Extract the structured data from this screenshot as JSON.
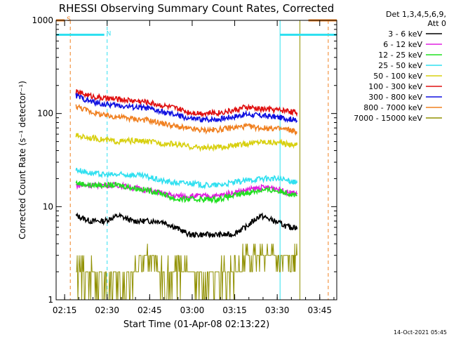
{
  "chart_data": {
    "type": "line",
    "title": "RHESSI Observing Summary Count Rates, Corrected",
    "xlabel": "Start Time (01-Apr-08 02:13:22)",
    "ylabel": "Corrected Count Rate (s⁻¹ detector⁻¹)",
    "yscale": "log",
    "ylim": [
      1,
      1000
    ],
    "xlim": [
      "02:12",
      "03:51"
    ],
    "x_ticks": [
      "02:15",
      "02:30",
      "02:45",
      "03:00",
      "03:15",
      "03:30",
      "03:45"
    ],
    "y_ticks": [
      "1",
      "10",
      "100",
      "1000"
    ],
    "legend_header": [
      "Det 1,3,4,5,6,9,",
      "Att 0"
    ],
    "legend_position": "right",
    "footer": "14-Oct-2021 05:45",
    "flags": [
      {
        "label": "S",
        "color": "#f08020",
        "value": 1000,
        "segments": [
          [
            "02:12",
            "02:15"
          ],
          [
            "03:41",
            "03:51"
          ]
        ]
      },
      {
        "label": "N",
        "color": "#30e0f0",
        "value": 700,
        "segments": [
          [
            "02:12",
            "02:29"
          ],
          [
            "03:31",
            "03:51"
          ]
        ]
      }
    ],
    "vlines": [
      {
        "x": "02:17",
        "color": "#f08020",
        "style": "dashed"
      },
      {
        "x": "02:30",
        "color": "#30e0f0",
        "style": "dashed"
      },
      {
        "x": "03:31",
        "color": "#30e0f0",
        "style": "solid"
      },
      {
        "x": "03:38",
        "color": "#909000",
        "style": "solid"
      },
      {
        "x": "03:48",
        "color": "#f08020",
        "style": "dashed"
      }
    ],
    "x": [
      "02:19",
      "02:24",
      "02:29",
      "02:34",
      "02:39",
      "02:44",
      "02:49",
      "02:54",
      "02:59",
      "03:04",
      "03:09",
      "03:14",
      "03:19",
      "03:24",
      "03:29",
      "03:34",
      "03:37"
    ],
    "series": [
      {
        "name": "3 - 6 keV",
        "color": "#000000",
        "values": [
          8,
          7,
          7,
          8,
          7,
          7,
          7,
          6,
          5,
          5,
          5,
          5,
          6,
          8,
          7,
          6,
          6
        ]
      },
      {
        "name": "6 - 12 keV",
        "color": "#e020e0",
        "values": [
          17,
          17,
          17,
          17,
          16,
          15,
          14,
          13,
          13,
          13,
          13,
          14,
          15,
          16,
          16,
          14,
          14
        ]
      },
      {
        "name": "12 - 25 keV",
        "color": "#20e020",
        "values": [
          18,
          17,
          17,
          17,
          16,
          15,
          14,
          12,
          12,
          12,
          12,
          13,
          14,
          15,
          15,
          14,
          13
        ]
      },
      {
        "name": "25 - 50 keV",
        "color": "#30e0f0",
        "values": [
          25,
          23,
          22,
          22,
          22,
          21,
          19,
          18,
          18,
          17,
          17,
          18,
          19,
          20,
          20,
          19,
          18
        ]
      },
      {
        "name": "50 - 100 keV",
        "color": "#d8d010",
        "values": [
          58,
          55,
          52,
          50,
          51,
          50,
          48,
          47,
          44,
          43,
          43,
          45,
          47,
          50,
          49,
          47,
          46
        ]
      },
      {
        "name": "100 - 300 keV",
        "color": "#e01010",
        "values": [
          170,
          155,
          145,
          142,
          138,
          133,
          123,
          114,
          103,
          101,
          102,
          107,
          117,
          112,
          110,
          107,
          102
        ]
      },
      {
        "name": "300 - 800 keV",
        "color": "#1010e0",
        "values": [
          155,
          135,
          125,
          122,
          118,
          114,
          104,
          97,
          88,
          86,
          87,
          92,
          98,
          95,
          92,
          88,
          84
        ]
      },
      {
        "name": "800 - 7000 keV",
        "color": "#f08020",
        "values": [
          120,
          105,
          95,
          92,
          88,
          85,
          79,
          73,
          68,
          66,
          67,
          70,
          73,
          70,
          69,
          67,
          63
        ]
      },
      {
        "name": "7000 - 15000 keV",
        "color": "#909000",
        "values": [
          2,
          2,
          1.5,
          1.5,
          2,
          3,
          2,
          2,
          2,
          1.5,
          2,
          2,
          3,
          3,
          3,
          2.5,
          3
        ]
      }
    ]
  }
}
